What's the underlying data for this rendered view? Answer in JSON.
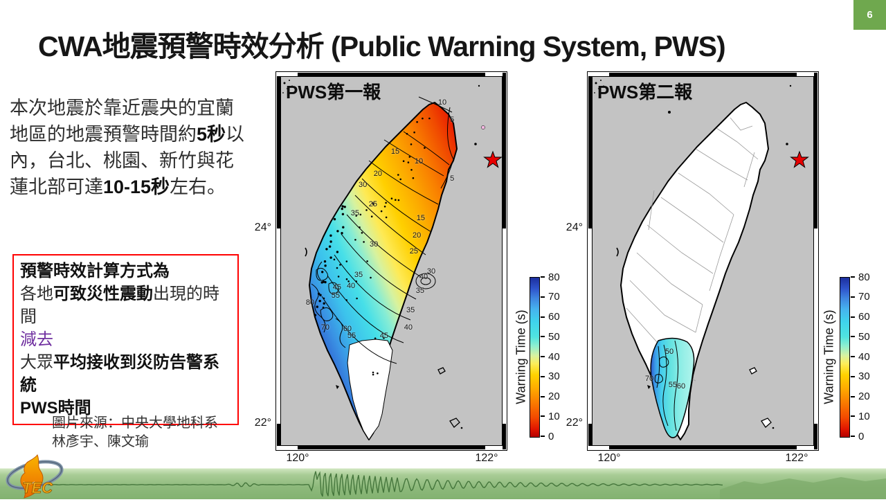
{
  "slide": {
    "title": "CWA地震預警時效分析 (Public Warning System, PWS)",
    "page_number": "6"
  },
  "intro": {
    "p1": "本次地震於靠近震央的宜蘭地區的地震預警時間約",
    "b1": "5秒",
    "p2": "以內，台北、桃園、新竹與花蓮北部可達",
    "b2": "10-15秒",
    "p3": "左右。"
  },
  "method_box": {
    "line1": "預警時效計算方式為",
    "line2_a": "各地",
    "line2_b": "可致災性震動",
    "line2_c": "出現的時間",
    "line3": "減去",
    "line4_a": "大眾",
    "line4_b": "平均接收到災防告警系統",
    "line5": "PWS時間"
  },
  "credit": {
    "line1": "圖片來源：中央大學地科系",
    "line2": "林彥宇、陳文瑜"
  },
  "maps": {
    "left": {
      "label": "PWS第一報",
      "lat_ticks": [
        "24°",
        "22°"
      ],
      "lon_ticks": [
        "120°",
        "122°"
      ]
    },
    "right": {
      "label": "PWS第二報",
      "lat_ticks": [
        "24°",
        "22°"
      ],
      "lon_ticks": [
        "120°",
        "122°"
      ]
    },
    "colorbar": {
      "title": "Warning Time (s)",
      "ticks_top_to_bottom": [
        "80",
        "70",
        "60",
        "50",
        "40",
        "30",
        "20",
        "10",
        "0"
      ]
    }
  },
  "footer": {
    "logo_text": "TEC"
  },
  "colors": {
    "badge_green": "#6fa84e",
    "purple_text": "#7030a0",
    "method_box_border": "#ff0000",
    "map_background": "#c3c3c3",
    "epicenter_star": "#e80000",
    "footer_green": "#8db97b",
    "waveform_green": "#3c6e34"
  },
  "chart_data": [
    {
      "type": "contour-map",
      "title": "PWS第一報",
      "region": "Taiwan",
      "variable": "PWS first-report earthquake early-warning lead time",
      "units": "s",
      "x_axis_ticks": [
        "120°",
        "122°"
      ],
      "y_axis_ticks": [
        "24°",
        "22°"
      ],
      "colorbar": {
        "title": "Warning Time (s)",
        "min": 0,
        "max": 80,
        "ticks": [
          0,
          10,
          20,
          30,
          40,
          50,
          60,
          70,
          80
        ]
      },
      "epicenter_marker": "red star offshore northeast Taiwan",
      "contour_interval_s": 5,
      "labels": [
        {
          "v": "10",
          "x": 72.9,
          "y": 7.1
        },
        {
          "v": "5",
          "x": 77.3,
          "y": 11.8
        },
        {
          "v": "15",
          "x": 51.7,
          "y": 20.4
        },
        {
          "v": "10",
          "x": 62.3,
          "y": 23.0
        },
        {
          "v": "5",
          "x": 77.3,
          "y": 27.7
        },
        {
          "v": "20",
          "x": 43.9,
          "y": 26.4
        },
        {
          "v": "30",
          "x": 37.1,
          "y": 29.4
        },
        {
          "v": "25",
          "x": 41.7,
          "y": 34.6
        },
        {
          "v": "35",
          "x": 33.6,
          "y": 37.1
        },
        {
          "v": "15",
          "x": 63.2,
          "y": 38.4
        },
        {
          "v": "20",
          "x": 61.4,
          "y": 43.1
        },
        {
          "v": "25",
          "x": 60.1,
          "y": 47.4
        },
        {
          "v": "30",
          "x": 42.1,
          "y": 45.5
        },
        {
          "v": "30",
          "x": 67.9,
          "y": 52.8
        },
        {
          "v": "40",
          "x": 64.5,
          "y": 54.3
        },
        {
          "v": "35",
          "x": 62.9,
          "y": 58.1
        },
        {
          "v": "35",
          "x": 35.2,
          "y": 53.7
        },
        {
          "v": "40",
          "x": 31.8,
          "y": 56.7
        },
        {
          "v": "45",
          "x": 25.5,
          "y": 57.1
        },
        {
          "v": "55",
          "x": 24.9,
          "y": 59.4
        },
        {
          "v": "80",
          "x": 13.4,
          "y": 61.2
        },
        {
          "v": "35",
          "x": 58.6,
          "y": 63.3
        },
        {
          "v": "60",
          "x": 30.2,
          "y": 68.4
        },
        {
          "v": "55",
          "x": 32.1,
          "y": 70.2
        },
        {
          "v": "40",
          "x": 57.6,
          "y": 68.0
        },
        {
          "v": "45",
          "x": 46.7,
          "y": 70.2
        },
        {
          "v": "70",
          "x": 20.2,
          "y": 68.0
        }
      ]
    },
    {
      "type": "contour-map",
      "title": "PWS第二報",
      "region": "Taiwan",
      "variable": "PWS second-report earthquake early-warning lead time",
      "units": "s",
      "x_axis_ticks": [
        "120°",
        "122°"
      ],
      "y_axis_ticks": [
        "24°",
        "22°"
      ],
      "colorbar": {
        "title": "Warning Time (s)",
        "min": 0,
        "max": 80,
        "ticks": [
          0,
          10,
          20,
          30,
          40,
          50,
          60,
          70,
          80
        ]
      },
      "epicenter_marker": "red star offshore northeast Taiwan",
      "contour_interval_s": 5,
      "labels": [
        {
          "v": "50",
          "x": 34.9,
          "y": 74.5
        },
        {
          "v": "55",
          "x": 36.4,
          "y": 83.5
        },
        {
          "v": "60",
          "x": 40.2,
          "y": 83.9
        },
        {
          "v": "70",
          "x": 25.9,
          "y": 81.8
        }
      ]
    }
  ]
}
